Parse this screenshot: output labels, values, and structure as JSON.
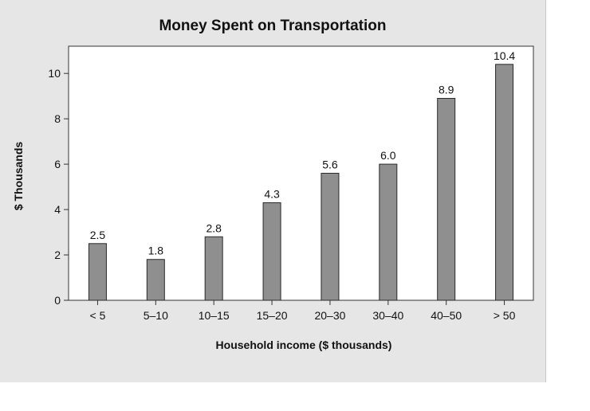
{
  "chart_data": {
    "type": "bar",
    "title": "Money Spent on Transportation",
    "xlabel": "Household income ($ thousands)",
    "ylabel": "$ Thousands",
    "categories": [
      "< 5",
      "5–10",
      "10–15",
      "15–20",
      "20–30",
      "30–40",
      "40–50",
      "> 50"
    ],
    "values": [
      2.5,
      1.8,
      2.8,
      4.3,
      5.6,
      6.0,
      8.9,
      10.4
    ],
    "data_labels": [
      "2.5",
      "1.8",
      "2.8",
      "4.3",
      "5.6",
      "6.0",
      "8.9",
      "10.4"
    ],
    "ylim": [
      0,
      11.2
    ],
    "yticks": [
      0,
      2,
      4,
      6,
      8,
      10
    ],
    "grid": false,
    "legend": "none",
    "colors": {
      "bar_fill": "#8f8f8f",
      "bar_stroke": "#2a2a2a",
      "panel_background": "#e6e6e6",
      "plot_background": "#ffffff"
    }
  }
}
